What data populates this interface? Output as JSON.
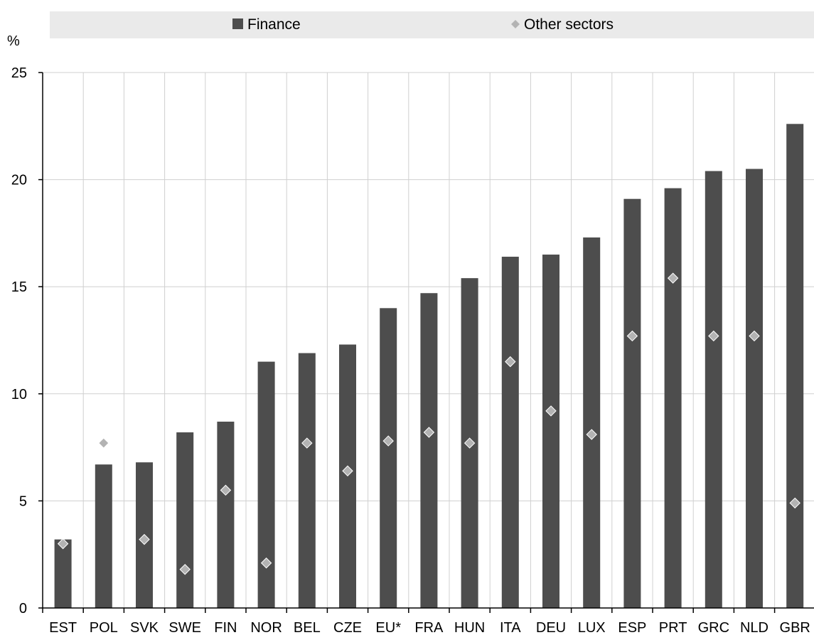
{
  "chart_data": {
    "type": "bar",
    "ylabel": "%",
    "ylim": [
      0,
      25
    ],
    "yticks": [
      0,
      5,
      10,
      15,
      20,
      25
    ],
    "grid": true,
    "legend_position": "top",
    "categories": [
      "EST",
      "POL",
      "SVK",
      "SWE",
      "FIN",
      "NOR",
      "BEL",
      "CZE",
      "EU*",
      "FRA",
      "HUN",
      "ITA",
      "DEU",
      "LUX",
      "ESP",
      "PRT",
      "GRC",
      "NLD",
      "GBR"
    ],
    "series": [
      {
        "name": "Finance",
        "mark": "bar",
        "color": "#4d4d4d",
        "values": [
          3.2,
          6.7,
          6.8,
          8.2,
          8.7,
          11.5,
          11.9,
          12.3,
          14.0,
          14.7,
          15.4,
          16.4,
          16.5,
          17.3,
          19.1,
          19.6,
          20.4,
          20.5,
          22.6
        ]
      },
      {
        "name": "Other sectors",
        "mark": "diamond",
        "color": "#b3b3b3",
        "values": [
          3.0,
          7.7,
          3.2,
          1.8,
          5.5,
          2.1,
          7.7,
          6.4,
          7.8,
          8.2,
          7.7,
          11.5,
          9.2,
          8.1,
          12.7,
          15.4,
          12.7,
          12.7,
          4.9
        ]
      }
    ]
  }
}
